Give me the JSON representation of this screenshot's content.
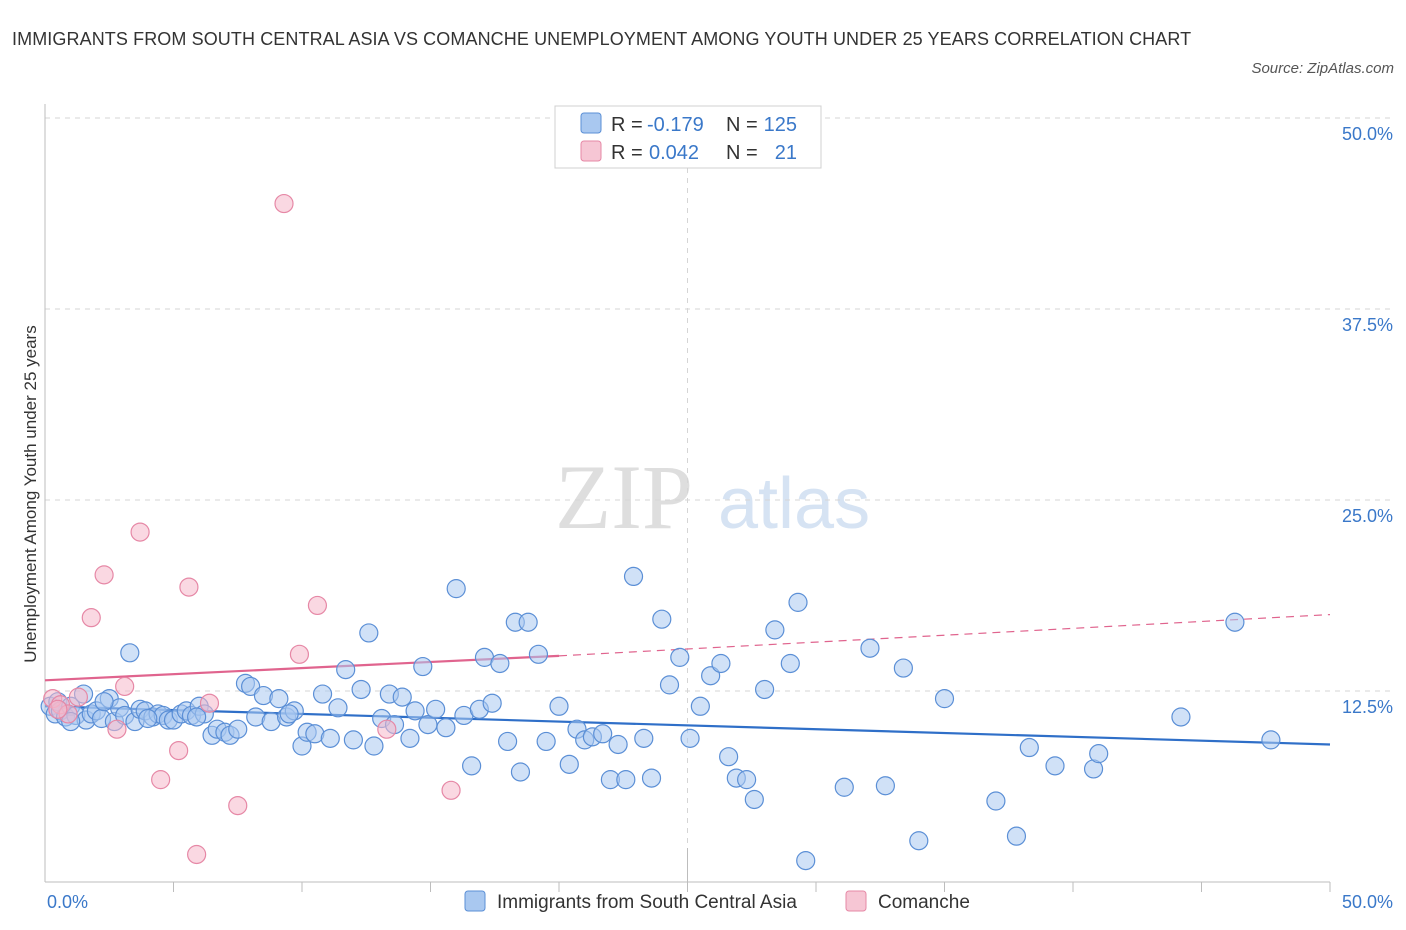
{
  "title": "IMMIGRANTS FROM SOUTH CENTRAL ASIA VS COMANCHE UNEMPLOYMENT AMONG YOUTH UNDER 25 YEARS CORRELATION CHART",
  "source": "Source: ZipAtlas.com",
  "watermark": {
    "zip": "ZIP",
    "atlas": "atlas"
  },
  "legend": {
    "r_label": "R =",
    "n_label": "N =",
    "rows": [
      {
        "series": "Immigrants from South Central Asia",
        "r": "-0.179",
        "n": "125"
      },
      {
        "series": "Comanche",
        "r": "0.042",
        "n": "21"
      }
    ]
  },
  "colors": {
    "blue_fill": "#a9c8f0",
    "blue_stroke": "#5b8fd6",
    "blue_line": "#2f6fc8",
    "pink_fill": "#f6b8cb",
    "pink_stroke": "#e688a6",
    "pink_line": "#e0648e",
    "grid": "#d5d5d5",
    "axis_label": "#3a78c9"
  },
  "chart_data": {
    "type": "scatter",
    "title": "IMMIGRANTS FROM SOUTH CENTRAL ASIA VS COMANCHE UNEMPLOYMENT AMONG YOUTH UNDER 25 YEARS CORRELATION CHART",
    "xlabel": "",
    "ylabel": "Unemployment Among Youth under 25 years",
    "xlim": [
      0,
      50
    ],
    "ylim": [
      0,
      50
    ],
    "x_tick_labels": [
      "0.0%",
      "50.0%"
    ],
    "y_ticks": [
      12.5,
      25.0,
      37.5,
      50.0
    ],
    "y_tick_labels": [
      "12.5%",
      "25.0%",
      "37.5%",
      "50.0%"
    ],
    "grid": true,
    "legend_position": "bottom",
    "series": [
      {
        "name": "Immigrants from South Central Asia",
        "color": "#5b8fd6",
        "trend": {
          "x": [
            0,
            50
          ],
          "y": [
            11.5,
            9.0
          ],
          "style": "solid"
        },
        "points": [
          [
            0.2,
            11.5
          ],
          [
            0.4,
            11.0
          ],
          [
            0.5,
            11.8
          ],
          [
            0.6,
            11.2
          ],
          [
            0.8,
            10.8
          ],
          [
            1.0,
            11.5
          ],
          [
            1.2,
            10.9
          ],
          [
            1.5,
            12.3
          ],
          [
            1.6,
            10.6
          ],
          [
            1.8,
            11.0
          ],
          [
            2.0,
            11.2
          ],
          [
            2.2,
            10.7
          ],
          [
            2.5,
            12.0
          ],
          [
            2.7,
            10.5
          ],
          [
            2.9,
            11.4
          ],
          [
            3.1,
            10.9
          ],
          [
            3.3,
            15.0
          ],
          [
            3.5,
            10.5
          ],
          [
            3.7,
            11.3
          ],
          [
            3.9,
            11.2
          ],
          [
            4.2,
            10.8
          ],
          [
            4.4,
            11.0
          ],
          [
            4.6,
            10.9
          ],
          [
            4.8,
            10.6
          ],
          [
            5.0,
            10.6
          ],
          [
            5.3,
            11.0
          ],
          [
            5.5,
            11.2
          ],
          [
            5.7,
            10.9
          ],
          [
            6.0,
            11.5
          ],
          [
            6.2,
            11.0
          ],
          [
            6.5,
            9.6
          ],
          [
            6.7,
            10.0
          ],
          [
            7.0,
            9.8
          ],
          [
            7.2,
            9.6
          ],
          [
            7.5,
            10.0
          ],
          [
            7.8,
            13.0
          ],
          [
            8.0,
            12.8
          ],
          [
            8.2,
            10.8
          ],
          [
            8.5,
            12.2
          ],
          [
            8.8,
            10.5
          ],
          [
            9.1,
            12.0
          ],
          [
            9.4,
            10.8
          ],
          [
            9.7,
            11.2
          ],
          [
            10.0,
            8.9
          ],
          [
            10.2,
            9.8
          ],
          [
            10.5,
            9.7
          ],
          [
            10.8,
            12.3
          ],
          [
            11.1,
            9.4
          ],
          [
            11.4,
            11.4
          ],
          [
            11.7,
            13.9
          ],
          [
            12.0,
            9.3
          ],
          [
            12.3,
            12.6
          ],
          [
            12.6,
            16.3
          ],
          [
            12.8,
            8.9
          ],
          [
            13.1,
            10.7
          ],
          [
            13.4,
            12.3
          ],
          [
            13.6,
            10.3
          ],
          [
            13.9,
            12.1
          ],
          [
            14.2,
            9.4
          ],
          [
            14.4,
            11.2
          ],
          [
            14.7,
            14.1
          ],
          [
            14.9,
            10.3
          ],
          [
            15.2,
            11.3
          ],
          [
            15.6,
            10.1
          ],
          [
            16.0,
            19.2
          ],
          [
            16.3,
            10.9
          ],
          [
            16.6,
            7.6
          ],
          [
            16.9,
            11.3
          ],
          [
            17.1,
            14.7
          ],
          [
            17.4,
            11.7
          ],
          [
            17.7,
            14.3
          ],
          [
            18.0,
            9.2
          ],
          [
            18.3,
            17.0
          ],
          [
            18.5,
            7.2
          ],
          [
            18.8,
            17.0
          ],
          [
            19.2,
            14.9
          ],
          [
            19.5,
            9.2
          ],
          [
            20.0,
            11.5
          ],
          [
            20.4,
            7.7
          ],
          [
            20.7,
            10.0
          ],
          [
            21.0,
            9.3
          ],
          [
            21.3,
            9.5
          ],
          [
            21.7,
            9.7
          ],
          [
            22.0,
            6.7
          ],
          [
            22.3,
            9.0
          ],
          [
            22.6,
            6.7
          ],
          [
            22.9,
            20.0
          ],
          [
            23.3,
            9.4
          ],
          [
            23.6,
            6.8
          ],
          [
            24.0,
            17.2
          ],
          [
            24.3,
            12.9
          ],
          [
            24.7,
            14.7
          ],
          [
            25.1,
            9.4
          ],
          [
            25.5,
            11.5
          ],
          [
            25.9,
            13.5
          ],
          [
            26.3,
            14.3
          ],
          [
            26.6,
            8.2
          ],
          [
            26.9,
            6.8
          ],
          [
            27.3,
            6.7
          ],
          [
            27.6,
            5.4
          ],
          [
            28.0,
            12.6
          ],
          [
            28.4,
            16.5
          ],
          [
            29.0,
            14.3
          ],
          [
            29.3,
            18.3
          ],
          [
            29.6,
            1.4
          ],
          [
            31.1,
            6.2
          ],
          [
            32.1,
            15.3
          ],
          [
            32.7,
            6.3
          ],
          [
            33.4,
            14.0
          ],
          [
            34.0,
            2.7
          ],
          [
            35.0,
            12.0
          ],
          [
            37.0,
            5.3
          ],
          [
            37.8,
            3.0
          ],
          [
            38.3,
            8.8
          ],
          [
            39.3,
            7.6
          ],
          [
            40.8,
            7.4
          ],
          [
            41.0,
            8.4
          ],
          [
            44.2,
            10.8
          ],
          [
            46.3,
            17.0
          ],
          [
            47.7,
            9.3
          ],
          [
            1.0,
            10.5
          ],
          [
            2.3,
            11.8
          ],
          [
            4.0,
            10.7
          ],
          [
            5.9,
            10.8
          ],
          [
            9.5,
            11.0
          ]
        ]
      },
      {
        "name": "Comanche",
        "color": "#e688a6",
        "trend": {
          "x": [
            0,
            20
          ],
          "y": [
            13.2,
            14.8
          ],
          "style": "solid",
          "dashed_extension": {
            "x": [
              20,
              50
            ],
            "y": [
              14.8,
              17.5
            ]
          }
        },
        "points": [
          [
            0.3,
            12.0
          ],
          [
            0.6,
            11.6
          ],
          [
            0.9,
            11.0
          ],
          [
            1.3,
            12.1
          ],
          [
            1.8,
            17.3
          ],
          [
            2.3,
            20.1
          ],
          [
            2.8,
            10.0
          ],
          [
            3.1,
            12.8
          ],
          [
            3.7,
            22.9
          ],
          [
            4.5,
            6.7
          ],
          [
            5.2,
            8.6
          ],
          [
            5.6,
            19.3
          ],
          [
            5.9,
            1.8
          ],
          [
            6.4,
            11.7
          ],
          [
            7.5,
            5.0
          ],
          [
            9.3,
            44.4
          ],
          [
            9.9,
            14.9
          ],
          [
            10.6,
            18.1
          ],
          [
            13.3,
            10.0
          ],
          [
            15.8,
            6.0
          ],
          [
            0.5,
            11.3
          ]
        ]
      }
    ]
  }
}
